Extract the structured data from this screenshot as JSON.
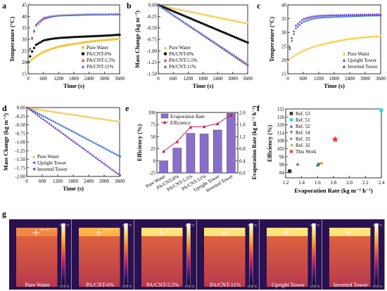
{
  "panel_labels": [
    "a",
    "b",
    "c",
    "d",
    "e",
    "f",
    "g"
  ],
  "colors": {
    "pure_water": "#f5c43a",
    "pa_cnt_0": "#111111",
    "pa_cnt_55": "#e8383d",
    "pa_cnt_11": "#3b6fd4",
    "upright": "#f5c43a",
    "inverted": "#6a3fbf",
    "bar": "#8a6fc9",
    "line": "#c2185b"
  },
  "chart_data": [
    {
      "panel": "a",
      "type": "line",
      "xlabel": "Time (s)",
      "ylabel": "Temperature (°C)",
      "xlim": [
        0,
        3600
      ],
      "ylim": [
        15,
        45
      ],
      "xticks": [
        "0",
        "600",
        "1200",
        "1800",
        "2400",
        "3000",
        "3600"
      ],
      "yticks": [
        "15",
        "20",
        "25",
        "30",
        "35",
        "40",
        "45"
      ],
      "legend_position": "lower-right",
      "series": [
        {
          "name": "Pure Water",
          "color": "#f5c43a",
          "x": [
            0,
            120,
            300,
            600,
            900,
            1200,
            1800,
            2400,
            3000,
            3600
          ],
          "y": [
            19.5,
            21,
            22.5,
            24.5,
            25.8,
            26.8,
            28,
            29,
            29.7,
            30.2
          ]
        },
        {
          "name": "PA/CNT-0%",
          "color": "#111111",
          "x": [
            0,
            120,
            300,
            600,
            900,
            1200,
            1800,
            2400,
            3000,
            3600
          ],
          "y": [
            20,
            24,
            27.5,
            29.5,
            30.2,
            30.6,
            31,
            31.3,
            31.6,
            32
          ]
        },
        {
          "name": "PA/CNT-5.5%",
          "color": "#e8383d",
          "x": [
            0,
            120,
            300,
            600,
            900,
            1200,
            1800,
            2400,
            3000,
            3600
          ],
          "y": [
            20,
            29,
            36,
            39,
            40,
            40.5,
            40.8,
            41,
            41,
            41.2
          ]
        },
        {
          "name": "PA/CNT-11%",
          "color": "#3b6fd4",
          "x": [
            0,
            120,
            300,
            600,
            900,
            1200,
            1800,
            2400,
            3000,
            3600
          ],
          "y": [
            20,
            29.5,
            36.5,
            39.5,
            40.2,
            40.5,
            40.7,
            40.9,
            41,
            41
          ]
        }
      ]
    },
    {
      "panel": "b",
      "type": "line",
      "xlabel": "Time (s)",
      "ylabel": "Mass Change (kg m⁻²)",
      "xlim": [
        0,
        3600
      ],
      "ylim": [
        -1.5,
        0
      ],
      "xticks": [
        "0",
        "600",
        "1200",
        "1800",
        "2400",
        "3000",
        "3600"
      ],
      "yticks": [
        "0.00",
        "-0.25",
        "-0.50",
        "-0.75",
        "-1.00",
        "-1.25",
        "-1.50"
      ],
      "legend_position": "lower-left",
      "series": [
        {
          "name": "Pure Water",
          "color": "#f5c43a",
          "x": [
            0,
            3600
          ],
          "y": [
            0,
            -0.4
          ]
        },
        {
          "name": "PA/CNT-0%",
          "color": "#111111",
          "x": [
            0,
            3600
          ],
          "y": [
            0,
            -0.82
          ]
        },
        {
          "name": "PA/CNT-5.5%",
          "color": "#e8383d",
          "x": [
            0,
            3600
          ],
          "y": [
            0,
            -1.31
          ]
        },
        {
          "name": "PA/CNT-11%",
          "color": "#3b6fd4",
          "x": [
            0,
            3600
          ],
          "y": [
            0,
            -1.29
          ]
        }
      ]
    },
    {
      "panel": "c",
      "type": "line",
      "xlabel": "Time (s)",
      "ylabel": "Temperature (°C)",
      "xlim": [
        0,
        3600
      ],
      "ylim": [
        15,
        40
      ],
      "xticks": [
        "0",
        "600",
        "1200",
        "1800",
        "2400",
        "3000",
        "3600"
      ],
      "yticks": [
        "15",
        "20",
        "25",
        "30",
        "35",
        "40"
      ],
      "legend_position": "lower-right",
      "series": [
        {
          "name": "Pure Water",
          "color": "#f5c43a",
          "x": [
            0,
            120,
            300,
            600,
            900,
            1200,
            1800,
            2400,
            3000,
            3600
          ],
          "y": [
            19.5,
            20.8,
            22,
            23.5,
            24.6,
            25.5,
            26.8,
            27.8,
            28.4,
            28.8
          ]
        },
        {
          "name": "Upright Tower",
          "color": "#3b6fd4",
          "x": [
            0,
            120,
            300,
            600,
            900,
            1200,
            1800,
            2400,
            3000,
            3600
          ],
          "y": [
            20.5,
            26,
            31.5,
            34,
            35,
            35.5,
            35.8,
            36,
            36.2,
            36.3
          ]
        },
        {
          "name": "Inverted Tower",
          "color": "#6a3fbf",
          "x": [
            0,
            120,
            300,
            600,
            900,
            1200,
            1800,
            2400,
            3000,
            3600
          ],
          "y": [
            20.5,
            27,
            32.5,
            35,
            35.8,
            36.2,
            36.4,
            36.5,
            36.6,
            36.7
          ]
        }
      ]
    },
    {
      "panel": "d",
      "type": "line",
      "xlabel": "Time (s)",
      "ylabel": "Mass Change (kg m⁻²)",
      "xlim": [
        0,
        3600
      ],
      "ylim": [
        -2.0,
        0
      ],
      "xticks": [
        "0",
        "600",
        "1200",
        "1800",
        "2400",
        "3000",
        "3600"
      ],
      "yticks": [
        "0.00",
        "-0.25",
        "-0.50",
        "-0.75",
        "-1.00",
        "-1.25",
        "-1.50",
        "-1.75",
        "-2.00"
      ],
      "legend_position": "lower-left",
      "series": [
        {
          "name": "Pure Water",
          "color": "#f5c43a",
          "x": [
            0,
            3600
          ],
          "y": [
            0,
            -0.4
          ]
        },
        {
          "name": "Upright Tower",
          "color": "#3b6fd4",
          "x": [
            0,
            3600
          ],
          "y": [
            0,
            -1.42
          ]
        },
        {
          "name": "Inverted Tower",
          "color": "#6a3fbf",
          "x": [
            0,
            3600
          ],
          "y": [
            0,
            -1.97
          ]
        }
      ]
    },
    {
      "panel": "e",
      "type": "bar",
      "xlabel": "",
      "ylabel": "Efficiency (%)",
      "ylabel_right": "Evaporation Rate (kg m⁻² h⁻¹)",
      "categories": [
        "Pure Water",
        "PA/CNT-0%",
        "PA/CNT-5.5%",
        "PA/CNT-11%",
        "Upright Tower",
        "Inverted Tower"
      ],
      "ylim_left": [
        -25,
        100
      ],
      "ylim_right": [
        0,
        2.0
      ],
      "yticks_left": [
        "-25",
        "0",
        "25",
        "50",
        "75",
        "100"
      ],
      "yticks_right": [
        "0.0",
        "0.4",
        "0.8",
        "1.2",
        "1.6",
        "2.0"
      ],
      "legend_position": "top-left",
      "series": [
        {
          "name": "Evaporation Rate",
          "axis": "right",
          "kind": "bar",
          "values": [
            0.4,
            0.82,
            1.31,
            1.29,
            1.42,
            1.97
          ]
        },
        {
          "name": "Efficiency",
          "axis": "left",
          "kind": "line",
          "values": [
            20,
            40,
            70,
            71,
            77,
            95
          ]
        }
      ]
    },
    {
      "panel": "f",
      "type": "scatter",
      "xlabel": "Evaporation Rate (kg m⁻² h⁻¹)",
      "ylabel": "Efficiency (%)",
      "xlim": [
        1.2,
        2.4
      ],
      "ylim": [
        80,
        132
      ],
      "xticks": [
        "1.2",
        "1.4",
        "1.6",
        "1.8",
        "2.0",
        "2.2",
        "2.4"
      ],
      "yticks": [
        "84",
        "90",
        "96",
        "102",
        "108",
        "114",
        "120",
        "126",
        "132"
      ],
      "legend_position": "top-left",
      "series": [
        {
          "name": "Ref. 53",
          "marker": "square",
          "color": "#333333",
          "x": [
            1.25
          ],
          "y": [
            85
          ]
        },
        {
          "name": "Ref. 51",
          "marker": "square",
          "color": "#3fd6d6",
          "x": [
            2.4
          ],
          "y": [
            131
          ]
        },
        {
          "name": "Ref. 52",
          "marker": "triangle-up",
          "color": "#3b6fd4",
          "x": [
            1.6
          ],
          "y": [
            90
          ]
        },
        {
          "name": "Ref. 54",
          "marker": "triangle-down",
          "color": "#2e9e4a",
          "x": [
            1.62
          ],
          "y": [
            90
          ]
        },
        {
          "name": "Ref. 33",
          "marker": "diamond",
          "color": "#a56bd1",
          "x": [
            1.35
          ],
          "y": [
            90
          ]
        },
        {
          "name": "Ref. 32",
          "marker": "triangle-left",
          "color": "#e59a2b",
          "x": [
            1.64
          ],
          "y": [
            91
          ]
        },
        {
          "name": "This Work",
          "marker": "star",
          "color": "#e8383d",
          "x": [
            1.82
          ],
          "y": [
            109
          ]
        }
      ]
    }
  ],
  "thermal_panel": {
    "label": "g",
    "images": [
      {
        "caption": "Pure Water",
        "scale_max": "37.9 °C",
        "scale_min": "17.2 °C",
        "readout": "Sp1 28.7 °C"
      },
      {
        "caption": "PA/CNT-0%",
        "scale_max": "33.9 °C",
        "scale_min": "17.2 °C",
        "readout": "Sp1 31.3 °C"
      },
      {
        "caption": "PA/CNT-5.5%",
        "scale_max": "41.6 °C",
        "scale_min": "17.2 °C",
        "readout": "Sp1 41.1 °C"
      },
      {
        "caption": "PA/CNT-11%",
        "scale_max": "41.1 °C",
        "scale_min": "17.2 °C",
        "readout": "Sp1 41.0 °C"
      },
      {
        "caption": "Upright Tower",
        "scale_max": "36.9 °C",
        "scale_min": "17.2 °C",
        "readout": "Sp1 36.3 °C"
      },
      {
        "caption": "Inverted Tower",
        "scale_max": "37.0 °C",
        "scale_min": "17.2 °C",
        "readout": "Sp1 36.9 °C"
      }
    ]
  }
}
